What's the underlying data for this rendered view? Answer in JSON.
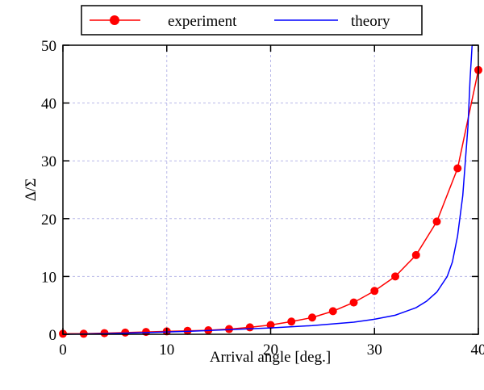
{
  "chart_data": {
    "type": "line",
    "xlabel": "Arrival angle [deg.]",
    "ylabel": "Δ/Σ",
    "xlim": [
      0,
      40
    ],
    "ylim": [
      0,
      50
    ],
    "x_ticks": [
      0,
      10,
      20,
      30,
      40
    ],
    "y_ticks": [
      0,
      10,
      20,
      30,
      40,
      50
    ],
    "grid": true,
    "legend_position": "top",
    "series": [
      {
        "name": "experiment",
        "color": "#ff0000",
        "marker": "circle",
        "x": [
          0,
          2,
          4,
          6,
          8,
          10,
          12,
          14,
          16,
          18,
          20,
          22,
          24,
          26,
          28,
          30,
          32,
          34,
          36,
          38,
          40
        ],
        "y": [
          0.1,
          0.1,
          0.2,
          0.3,
          0.4,
          0.5,
          0.6,
          0.7,
          0.9,
          1.2,
          1.6,
          2.2,
          2.9,
          4.0,
          5.5,
          7.5,
          10.0,
          13.7,
          19.5,
          28.7,
          45.7
        ]
      },
      {
        "name": "theory",
        "color": "#0000ff",
        "marker": "none",
        "x": [
          0,
          4,
          8,
          12,
          16,
          20,
          24,
          28,
          30,
          32,
          34,
          35,
          36,
          37,
          37.5,
          38,
          38.5,
          39,
          39.2,
          39.4
        ],
        "y": [
          0,
          0.1,
          0.3,
          0.5,
          0.8,
          1.1,
          1.5,
          2.1,
          2.6,
          3.3,
          4.6,
          5.7,
          7.3,
          10.0,
          12.5,
          17.0,
          24.0,
          36.0,
          44.0,
          50.0
        ]
      }
    ]
  }
}
